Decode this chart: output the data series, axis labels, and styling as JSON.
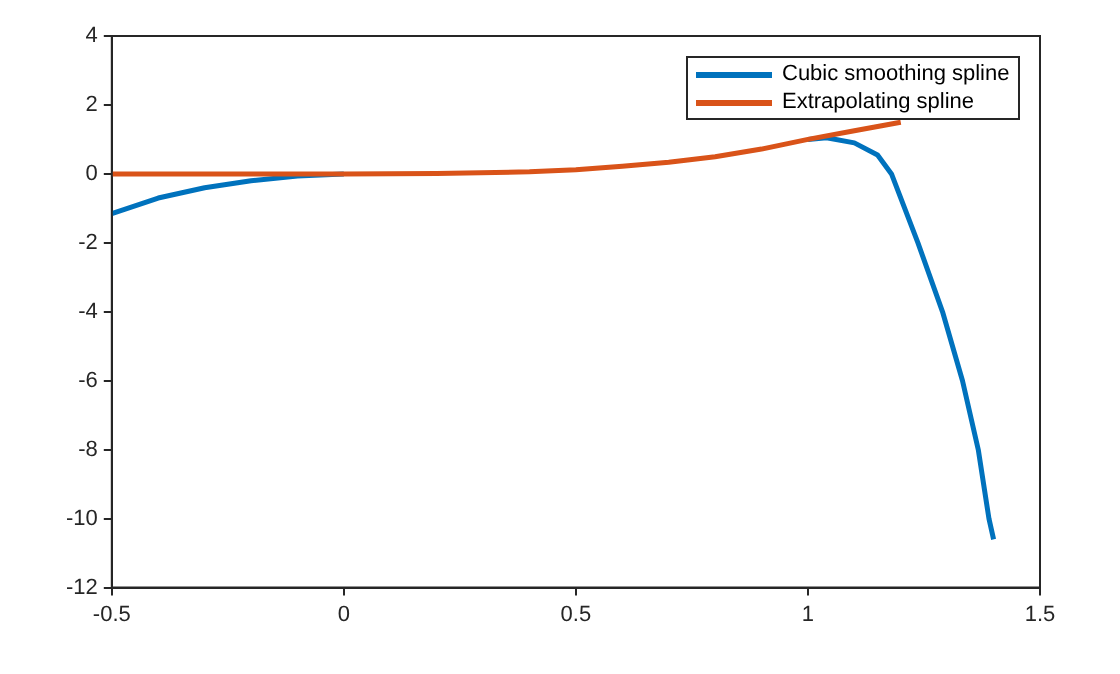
{
  "chart_data": {
    "type": "line",
    "xlim": [
      -0.5,
      1.5
    ],
    "ylim": [
      -12,
      4
    ],
    "xticks": [
      -0.5,
      0,
      0.5,
      1,
      1.5
    ],
    "yticks": [
      -12,
      -10,
      -8,
      -6,
      -4,
      -2,
      0,
      2,
      4
    ],
    "grid": false,
    "legend": "top right",
    "marker": "none",
    "line_style": "solid",
    "series": [
      {
        "name": "Cubic smoothing spline",
        "color": "#0072bd",
        "x": [
          -0.5,
          -0.4,
          -0.3,
          -0.2,
          -0.1,
          0,
          0.5,
          1,
          1.04,
          1.1,
          1.15,
          1.18,
          1.237,
          1.29,
          1.333,
          1.367,
          1.39,
          1.4
        ],
        "values": [
          -1.15,
          -0.7,
          -0.4,
          -0.2,
          -0.06,
          0,
          null,
          1,
          1.05,
          0.9,
          0.55,
          0,
          -2,
          -4,
          -6,
          -8,
          -10,
          -10.6
        ]
      },
      {
        "name": "Extrapolating spline",
        "color": "#d95319",
        "x": [
          -0.5,
          -0.2,
          0,
          0.2,
          0.4,
          0.5,
          0.6,
          0.7,
          0.8,
          0.9,
          1,
          1.1,
          1.2
        ],
        "values": [
          0,
          0,
          0,
          0.01,
          0.06,
          0.12,
          0.22,
          0.34,
          0.5,
          0.72,
          1,
          1.25,
          1.5
        ]
      }
    ]
  }
}
